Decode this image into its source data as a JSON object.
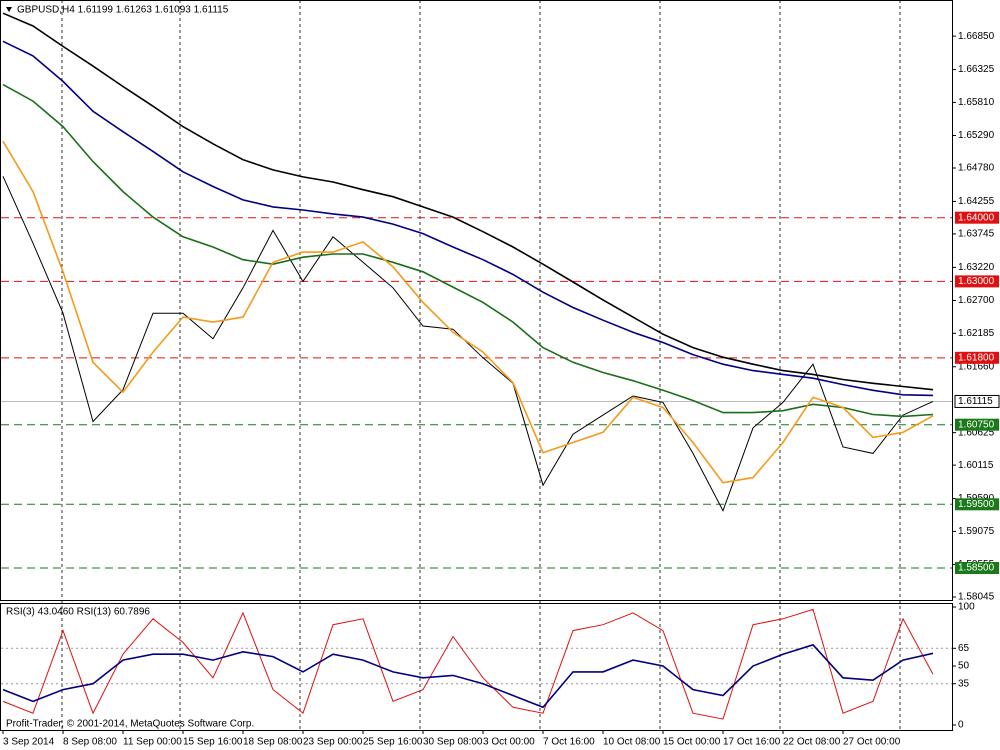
{
  "chart_data": [
    {
      "type": "line",
      "title": "GBPUSD,H4  1.61199 1.61263 1.61093 1.61115",
      "footer": "Profit-Trader, © 2001-2014, MetaQuotes Software Corp.",
      "categories": [
        "3 Sep 2014",
        null,
        "8 Sep 08:00",
        null,
        "11 Sep 00:00",
        null,
        "15 Sep 16:00",
        null,
        "18 Sep 08:00",
        null,
        "23 Sep 00:00",
        null,
        "25 Sep 16:00",
        null,
        "30 Sep 08:00",
        null,
        "3 Oct 00:00",
        null,
        "7 Oct 16:00",
        null,
        "10 Oct 08:00",
        null,
        "15 Oct 00:00",
        null,
        "17 Oct 16:00",
        null,
        "22 Oct 08:00",
        null,
        "27 Oct 00:00",
        null,
        null,
        null
      ],
      "ylim": [
        1.57982,
        1.67402
      ],
      "yticks": [
        {
          "value": 1.6685,
          "label": "1.66850"
        },
        {
          "value": 1.66325,
          "label": "1.66325"
        },
        {
          "value": 1.6581,
          "label": "1.65810"
        },
        {
          "value": 1.6529,
          "label": "1.65290"
        },
        {
          "value": 1.6478,
          "label": "1.64780"
        },
        {
          "value": 1.64255,
          "label": "1.64255"
        },
        {
          "value": 1.63745,
          "label": "1.63745"
        },
        {
          "value": 1.6322,
          "label": "1.63220"
        },
        {
          "value": 1.627,
          "label": "1.62700"
        },
        {
          "value": 1.62185,
          "label": "1.62185"
        },
        {
          "value": 1.6166,
          "label": "1.61660"
        },
        {
          "value": 1.60625,
          "label": "1.60625"
        },
        {
          "value": 1.60115,
          "label": "1.60115"
        },
        {
          "value": 1.5959,
          "label": "1.59590"
        },
        {
          "value": 1.59075,
          "label": "1.59075"
        },
        {
          "value": 1.58555,
          "label": "1.58555"
        },
        {
          "value": 1.58045,
          "label": "1.58045"
        }
      ],
      "levels": [
        {
          "value": 1.64,
          "label": "1.64000",
          "color": "#e01010"
        },
        {
          "value": 1.63,
          "label": "1.63000",
          "color": "#e01010"
        },
        {
          "value": 1.618,
          "label": "1.61800",
          "color": "#e01010"
        },
        {
          "value": 1.6075,
          "label": "1.60750",
          "color": "#1a7a1a"
        },
        {
          "value": 1.595,
          "label": "1.59500",
          "color": "#1a7a1a"
        },
        {
          "value": 1.585,
          "label": "1.58500",
          "color": "#1a7a1a"
        }
      ],
      "current": {
        "value": 1.61115,
        "label": "1.61115"
      },
      "series": [
        {
          "name": "Price",
          "color": "#000000",
          "values": [
            1.6465,
            1.636,
            1.625,
            1.608,
            1.613,
            1.625,
            1.625,
            1.621,
            1.629,
            1.638,
            1.63,
            1.637,
            1.633,
            1.629,
            1.623,
            1.6225,
            1.618,
            1.614,
            1.598,
            1.606,
            1.609,
            1.612,
            1.611,
            1.603,
            1.594,
            1.607,
            1.611,
            1.617,
            1.604,
            1.603,
            1.609,
            1.61115
          ]
        },
        {
          "name": "MA black",
          "color": "#000000",
          "values": [
            1.6721,
            1.6701,
            1.6669,
            1.6638,
            1.6606,
            1.6575,
            1.6543,
            1.6516,
            1.6491,
            1.6475,
            1.6464,
            1.6456,
            1.6444,
            1.6433,
            1.6417,
            1.6401,
            1.6378,
            1.6354,
            1.6327,
            1.6299,
            1.6271,
            1.6244,
            1.6217,
            1.6196,
            1.6181,
            1.617,
            1.616,
            1.6154,
            1.6146,
            1.614,
            1.6135,
            1.613
          ]
        },
        {
          "name": "MA navy",
          "color": "#000080",
          "values": [
            1.6677,
            1.6654,
            1.6614,
            1.6567,
            1.6535,
            1.6504,
            1.6472,
            1.6449,
            1.6428,
            1.6417,
            1.6412,
            1.6406,
            1.6401,
            1.639,
            1.6375,
            1.6354,
            1.6334,
            1.6311,
            1.6283,
            1.6259,
            1.6239,
            1.622,
            1.6204,
            1.6185,
            1.617,
            1.616,
            1.6154,
            1.6148,
            1.6138,
            1.6129,
            1.6122,
            1.6121
          ]
        },
        {
          "name": "MA green",
          "color": "#1a6e1a",
          "values": [
            1.6609,
            1.6583,
            1.6543,
            1.6488,
            1.6441,
            1.6401,
            1.637,
            1.6354,
            1.6334,
            1.6327,
            1.6338,
            1.6343,
            1.6343,
            1.633,
            1.6315,
            1.6291,
            1.6267,
            1.6236,
            1.6196,
            1.6173,
            1.6157,
            1.6144,
            1.6129,
            1.6113,
            1.6094,
            1.6094,
            1.6097,
            1.6107,
            1.6102,
            1.6091,
            1.6088,
            1.6091
          ]
        },
        {
          "name": "MA orange",
          "color": "#f59a1a",
          "values": [
            1.652,
            1.6441,
            1.6315,
            1.6173,
            1.6126,
            1.6189,
            1.6244,
            1.6236,
            1.6244,
            1.633,
            1.6346,
            1.6346,
            1.6362,
            1.6323,
            1.6267,
            1.622,
            1.6189,
            1.6141,
            1.6031,
            1.6047,
            1.6063,
            1.6118,
            1.6102,
            1.6047,
            1.5984,
            1.5992,
            1.6047,
            1.6118,
            1.6102,
            1.6055,
            1.6063,
            1.6089
          ]
        }
      ]
    },
    {
      "type": "line",
      "title": "RSI(3) 43.0460  RSI(13) 60.7896",
      "ylim": [
        0,
        100
      ],
      "yticks": [
        0,
        35,
        50,
        65,
        100
      ],
      "guides": [
        35,
        65
      ],
      "series": [
        {
          "name": "RSI(3)",
          "color": "#e01010",
          "values": [
            20,
            10,
            80,
            10,
            60,
            90,
            70,
            40,
            95,
            30,
            10,
            85,
            90,
            20,
            30,
            75,
            40,
            15,
            10,
            80,
            85,
            95,
            80,
            10,
            5,
            85,
            90,
            98,
            10,
            20,
            90,
            43
          ]
        },
        {
          "name": "RSI(13)",
          "color": "#000080",
          "values": [
            30,
            20,
            30,
            35,
            55,
            60,
            60,
            55,
            62,
            58,
            45,
            60,
            55,
            45,
            40,
            42,
            35,
            25,
            15,
            45,
            45,
            55,
            50,
            30,
            25,
            50,
            60,
            68,
            40,
            38,
            55,
            60.8
          ]
        }
      ]
    }
  ]
}
